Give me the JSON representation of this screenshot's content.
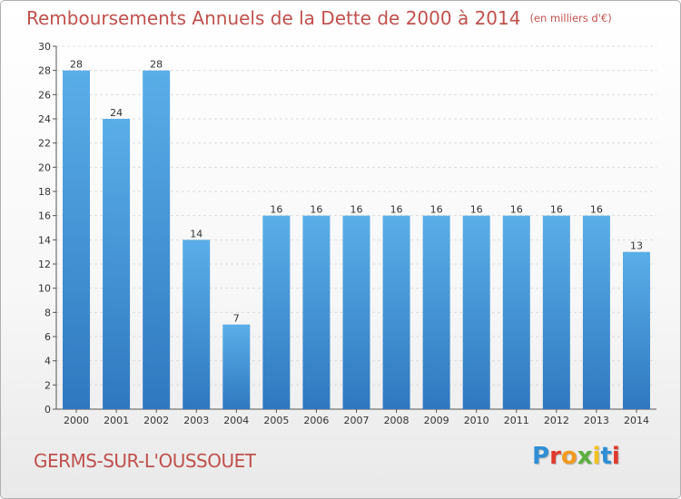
{
  "header": {
    "title": "Remboursements Annuels de la Dette de 2000 à 2014",
    "subtitle": "(en milliers d'€)"
  },
  "footer": {
    "location": "GERMS-SUR-L'OUSSOUET",
    "logo_text": "Proxiti"
  },
  "colors": {
    "bar_top": "#5aaee8",
    "bar_bottom": "#2f78c0",
    "title": "#c0504d"
  },
  "chart_data": {
    "type": "bar",
    "title": "Remboursements Annuels de la Dette de 2000 à 2014",
    "subtitle": "(en milliers d'€)",
    "xlabel": "",
    "ylabel": "",
    "categories": [
      "2000",
      "2001",
      "2002",
      "2003",
      "2004",
      "2005",
      "2006",
      "2007",
      "2008",
      "2009",
      "2010",
      "2011",
      "2012",
      "2013",
      "2014"
    ],
    "values": [
      28,
      24,
      28,
      14,
      7,
      16,
      16,
      16,
      16,
      16,
      16,
      16,
      16,
      16,
      13
    ],
    "ylim": [
      0,
      30
    ],
    "yticks": [
      0,
      2,
      4,
      6,
      8,
      10,
      12,
      14,
      16,
      18,
      20,
      22,
      24,
      26,
      28,
      30
    ],
    "grid": true,
    "data_labels": true
  }
}
